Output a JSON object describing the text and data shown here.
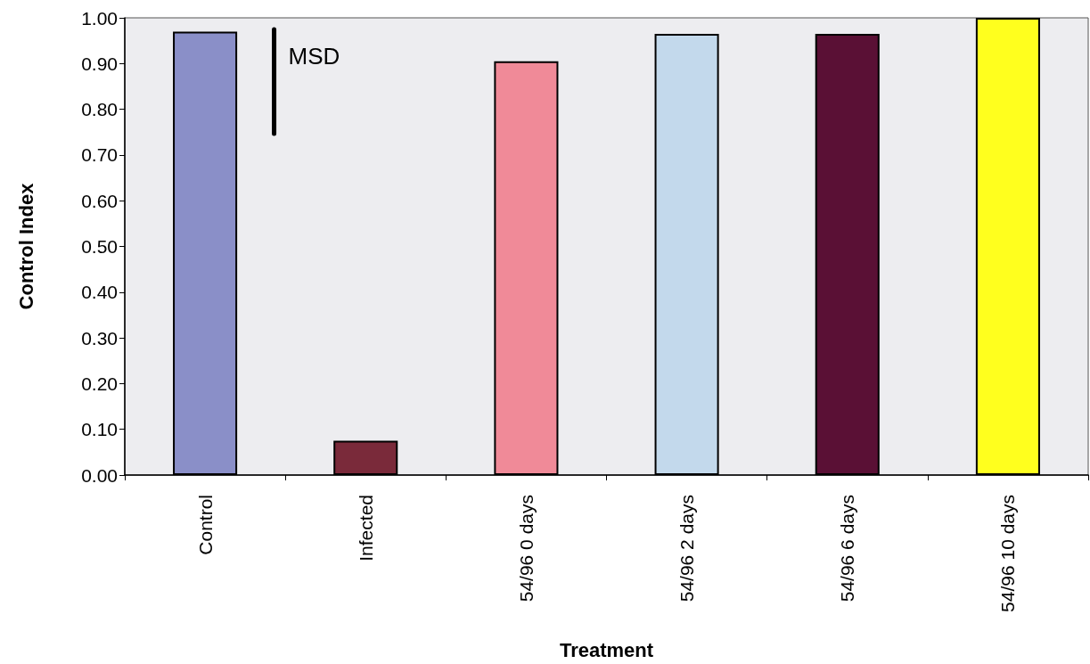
{
  "chart_data": {
    "type": "bar",
    "xlabel": "Treatment",
    "ylabel": "Control Index",
    "categories": [
      "Control",
      "Infected",
      "54/96 0 days",
      "54/96 2 days",
      "54/96 6 days",
      "54/96 10 days"
    ],
    "values": [
      0.97,
      0.075,
      0.905,
      0.965,
      0.965,
      1.0
    ],
    "colors": [
      "#8a8fc8",
      "#7a2a3a",
      "#f08a98",
      "#c3d9ec",
      "#5a1035",
      "#ffff1e"
    ],
    "ylim": [
      0,
      1
    ],
    "yticks": [
      {
        "value": 0,
        "label": "0.00"
      },
      {
        "value": 0.1,
        "label": "0.10"
      },
      {
        "value": 0.2,
        "label": "0.20"
      },
      {
        "value": 0.3,
        "label": "0.30"
      },
      {
        "value": 0.4,
        "label": "0.40"
      },
      {
        "value": 0.5,
        "label": "0.50"
      },
      {
        "value": 0.6,
        "label": "0.60"
      },
      {
        "value": 0.7,
        "label": "0.70"
      },
      {
        "value": 0.8,
        "label": "0.80"
      },
      {
        "value": 0.9,
        "label": "0.90"
      },
      {
        "value": 1,
        "label": "1.00"
      }
    ],
    "grid": false,
    "annotations": [
      "MSD"
    ]
  }
}
